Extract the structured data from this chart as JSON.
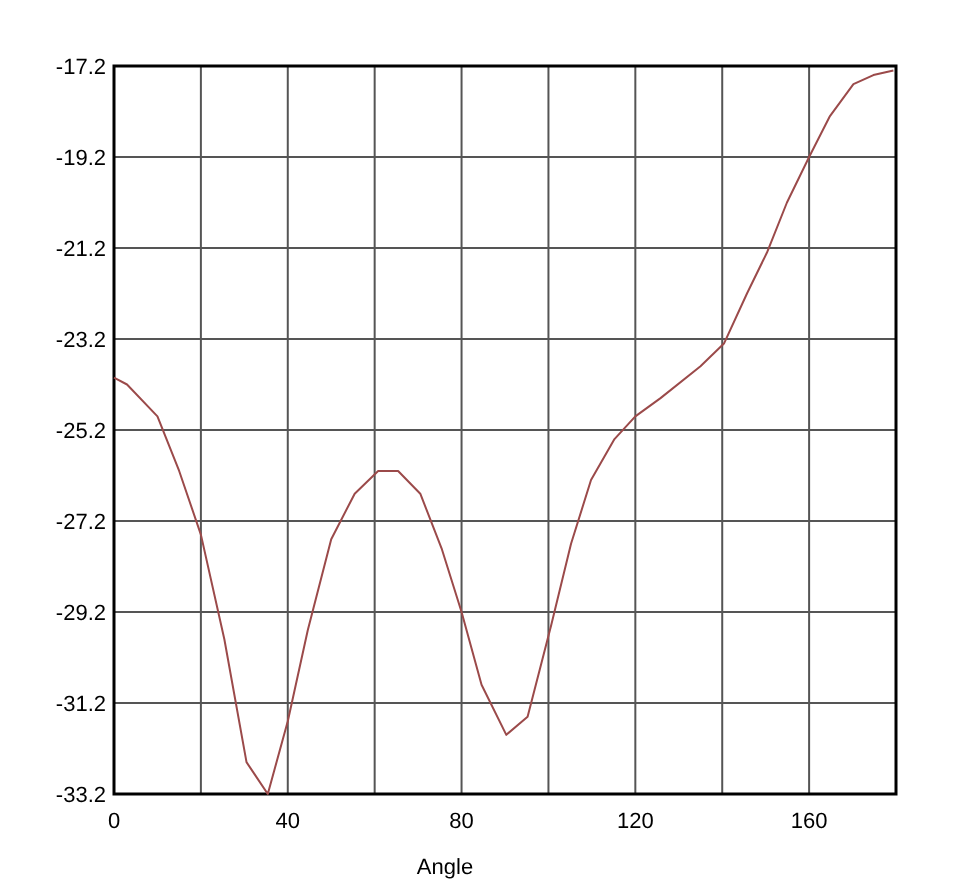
{
  "chart_data": {
    "type": "line",
    "xlabel": "Angle",
    "xlim": [
      0,
      180
    ],
    "ylim": [
      -33.2,
      -17.2
    ],
    "xticks": [
      0,
      {
        "value": 20,
        "label": null
      },
      40,
      {
        "value": 60,
        "label": null
      },
      80,
      {
        "value": 100,
        "label": null
      },
      120,
      {
        "value": 140,
        "label": null
      },
      160
    ],
    "yticks": [
      -33.2,
      -31.2,
      -29.2,
      -27.2,
      -25.2,
      -23.2,
      -21.2,
      -19.2,
      -17.2
    ],
    "grid": true,
    "series": [
      {
        "color": "#9b4a4a",
        "x": [
          0,
          3,
          10,
          15,
          20,
          25.4,
          30.5,
          35.4,
          40,
          44.6,
          50,
          55.4,
          60.8,
          65.4,
          70.5,
          75.4,
          80,
          84.6,
          90.3,
          95.2,
          100.6,
          105.2,
          109.8,
          115.2,
          120,
          125.8,
          135,
          140.4,
          145.7,
          150.3,
          154.9,
          160,
          164.8,
          170.2,
          174.8,
          179.4
        ],
        "values": [
          -24.05,
          -24.2,
          -24.9,
          -26.1,
          -27.5,
          -29.8,
          -32.5,
          -33.2,
          -31.6,
          -29.6,
          -27.6,
          -26.6,
          -26.1,
          -26.1,
          -26.6,
          -27.8,
          -29.2,
          -30.8,
          -31.9,
          -31.5,
          -29.5,
          -27.7,
          -26.3,
          -25.4,
          -24.9,
          -24.5,
          -23.8,
          -23.3,
          -22.2,
          -21.3,
          -20.2,
          -19.2,
          -18.3,
          -17.6,
          -17.4,
          -17.3
        ]
      }
    ]
  }
}
